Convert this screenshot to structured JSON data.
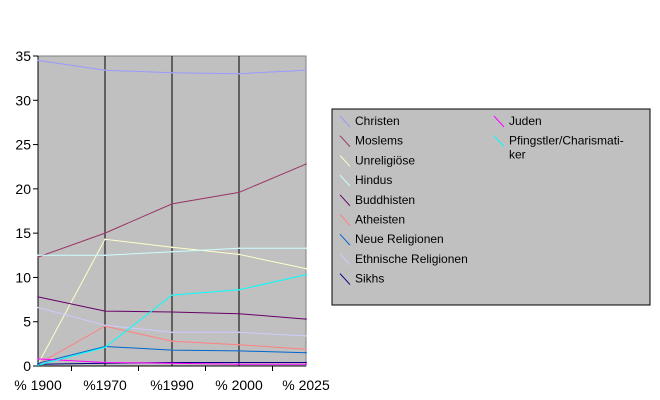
{
  "chart_data": {
    "type": "line",
    "categories": [
      "% 1900",
      "%1970",
      "%1990",
      "% 2000",
      "% 2025"
    ],
    "ylim": [
      0,
      35
    ],
    "yticks": [
      0,
      5,
      10,
      15,
      20,
      25,
      30,
      35
    ],
    "grid": "vertical",
    "legend_position": "right",
    "legend_columns": [
      [
        "Christen",
        "Moslems",
        "Unreligiöse",
        "Hindus",
        "Buddhisten",
        "Atheisten",
        "Neue Religionen",
        "Ethnische Religionen",
        "Sikhs"
      ],
      [
        "Juden",
        "Pfingstler/Charismati-|ker"
      ]
    ],
    "series": [
      {
        "name": "Christen",
        "color": "#9999ff",
        "values": [
          34.5,
          33.4,
          33.1,
          33.0,
          33.4
        ]
      },
      {
        "name": "Moslems",
        "color": "#993366",
        "values": [
          12.3,
          15.0,
          18.3,
          19.6,
          22.8
        ]
      },
      {
        "name": "Unreligiöse",
        "color": "#ffffcc",
        "values": [
          0.2,
          14.3,
          13.4,
          12.6,
          11.0
        ]
      },
      {
        "name": "Hindus",
        "color": "#ccffff",
        "values": [
          12.5,
          12.5,
          12.9,
          13.3,
          13.3
        ]
      },
      {
        "name": "Buddhisten",
        "color": "#660066",
        "values": [
          7.8,
          6.2,
          6.1,
          5.9,
          5.3
        ]
      },
      {
        "name": "Atheisten",
        "color": "#ff8080",
        "values": [
          0.2,
          4.5,
          2.8,
          2.4,
          1.9
        ]
      },
      {
        "name": "Neue Religionen",
        "color": "#0066cc",
        "values": [
          0.3,
          2.2,
          1.8,
          1.7,
          1.5
        ]
      },
      {
        "name": "Ethnische Religionen",
        "color": "#ccccff",
        "values": [
          6.6,
          4.6,
          3.8,
          3.8,
          3.4
        ]
      },
      {
        "name": "Sikhs",
        "color": "#000080",
        "values": [
          0.2,
          0.3,
          0.4,
          0.4,
          0.4
        ]
      },
      {
        "name": "Juden",
        "color": "#ff00ff",
        "values": [
          0.8,
          0.4,
          0.3,
          0.2,
          0.2
        ]
      },
      {
        "name": "Pfingstler/Charismatiker",
        "color": "#00ffff",
        "values": [
          0.1,
          2.1,
          8.0,
          8.6,
          10.3
        ]
      }
    ]
  }
}
